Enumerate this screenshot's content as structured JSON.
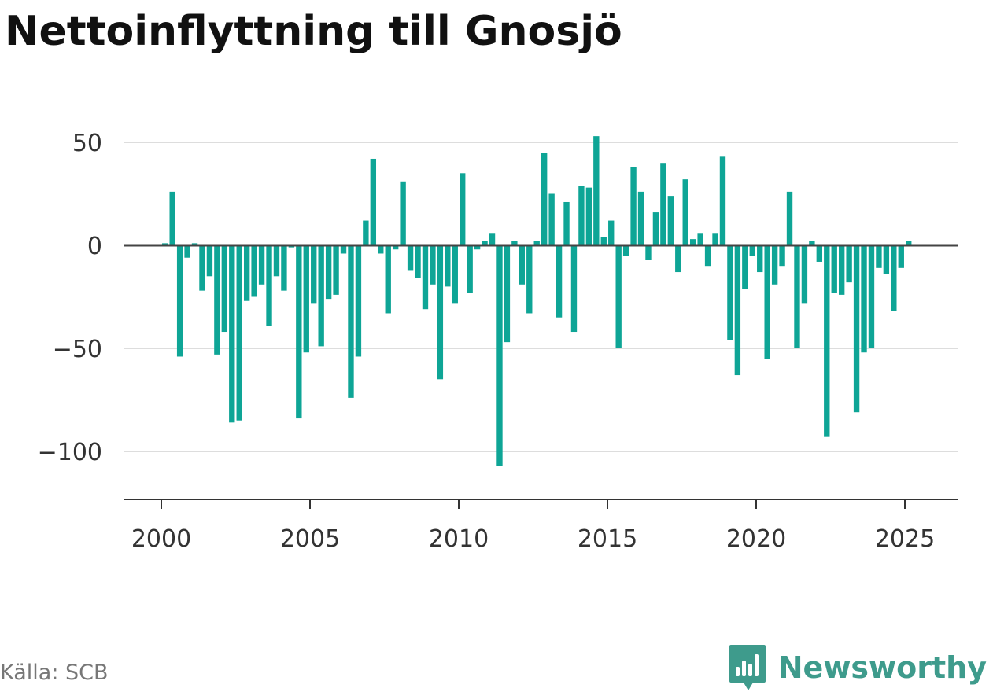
{
  "title": "Nettoinflyttning till Gnosjö",
  "source": "Källa: SCB",
  "brand": "Newsworthy",
  "colors": {
    "bar": "#0ea596",
    "grid": "#dddddd",
    "axis": "#333333",
    "brand": "#3e9b8c"
  },
  "chart_data": {
    "type": "bar",
    "title": "Nettoinflyttning till Gnosjö",
    "xlabel": "",
    "ylabel": "",
    "ylim": [
      -122,
      62
    ],
    "xlim": [
      1999,
      2026.8
    ],
    "yticks": [
      {
        "value": 50,
        "label": "50"
      },
      {
        "value": 0,
        "label": "0"
      },
      {
        "value": -50,
        "label": "−50"
      },
      {
        "value": -100,
        "label": "−100"
      }
    ],
    "xticks": [
      {
        "value": 2000,
        "label": "2000"
      },
      {
        "value": 2005,
        "label": "2005"
      },
      {
        "value": 2010,
        "label": "2010"
      },
      {
        "value": 2015,
        "label": "2015"
      },
      {
        "value": 2020,
        "label": "2020"
      },
      {
        "value": 2025,
        "label": "2025"
      }
    ],
    "grid": true,
    "bar_period": "quarter",
    "start_x": 2000.125,
    "x_step": 0.25,
    "values": [
      1,
      26,
      -54,
      -6,
      1,
      -22,
      -15,
      -53,
      -42,
      -86,
      -85,
      -27,
      -25,
      -19,
      -39,
      -15,
      -22,
      -1,
      -84,
      -52,
      -28,
      -49,
      -26,
      -24,
      -4,
      -74,
      -54,
      12,
      42,
      -4,
      -33,
      -2,
      31,
      -12,
      -16,
      -31,
      -19,
      -65,
      -20,
      -28,
      35,
      -23,
      -2,
      2,
      6,
      -107,
      -47,
      2,
      -19,
      -33,
      2,
      45,
      25,
      -35,
      21,
      -42,
      29,
      28,
      53,
      4,
      12,
      -50,
      -5,
      38,
      26,
      -7,
      16,
      40,
      24,
      -13,
      32,
      3,
      6,
      -10,
      6,
      43,
      -46,
      -63,
      -21,
      -5,
      -13,
      -55,
      -19,
      -10,
      26,
      -50,
      -28,
      2,
      -8,
      -93,
      -23,
      -24,
      -18,
      -81,
      -52,
      -50,
      -11,
      -14,
      -32,
      -11,
      2
    ]
  }
}
